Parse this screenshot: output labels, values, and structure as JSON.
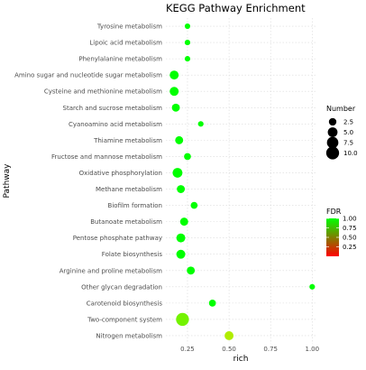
{
  "chart_data": {
    "type": "scatter",
    "title": "KEGG Pathway Enrichment",
    "xlabel": "rich",
    "ylabel": "Pathway",
    "xlim": [
      0.12,
      1.02
    ],
    "x_ticks": [
      0.25,
      0.5,
      0.75,
      1.0
    ],
    "x_tick_labels": [
      "0.25",
      "0.50",
      "0.75",
      "1.00"
    ],
    "grid": true,
    "categories": [
      "Tyrosine metabolism",
      "Lipoic acid metabolism",
      "Phenylalanine metabolism",
      "Amino sugar and nucleotide sugar metabolism",
      "Cysteine and methionine metabolism",
      "Starch and sucrose metabolism",
      "Cyanoamino acid metabolism",
      "Thiamine metabolism",
      "Fructose and mannose metabolism",
      "Oxidative phosphorylation",
      "Methane metabolism",
      "Biofilm formation",
      "Butanoate metabolism",
      "Pentose phosphate pathway",
      "Folate biosynthesis",
      "Arginine and proline metabolism",
      "Other glycan degradation",
      "Carotenoid biosynthesis",
      "Two-component system",
      "Nitrogen metabolism"
    ],
    "points": [
      {
        "pathway": "Tyrosine metabolism",
        "rich": 0.25,
        "number": 1,
        "fdr": 1.0
      },
      {
        "pathway": "Lipoic acid metabolism",
        "rich": 0.25,
        "number": 1,
        "fdr": 1.0
      },
      {
        "pathway": "Phenylalanine metabolism",
        "rich": 0.25,
        "number": 1,
        "fdr": 1.0
      },
      {
        "pathway": "Amino sugar and nucleotide sugar metabolism",
        "rich": 0.17,
        "number": 4,
        "fdr": 1.0
      },
      {
        "pathway": "Cysteine and methionine metabolism",
        "rich": 0.17,
        "number": 4,
        "fdr": 1.0
      },
      {
        "pathway": "Starch and sucrose metabolism",
        "rich": 0.18,
        "number": 3,
        "fdr": 1.0
      },
      {
        "pathway": "Cyanoamino acid metabolism",
        "rich": 0.33,
        "number": 1,
        "fdr": 1.0
      },
      {
        "pathway": "Thiamine metabolism",
        "rich": 0.2,
        "number": 3,
        "fdr": 1.0
      },
      {
        "pathway": "Fructose and mannose metabolism",
        "rich": 0.25,
        "number": 2,
        "fdr": 1.0
      },
      {
        "pathway": "Oxidative phosphorylation",
        "rich": 0.19,
        "number": 5,
        "fdr": 1.0
      },
      {
        "pathway": "Methane metabolism",
        "rich": 0.21,
        "number": 3,
        "fdr": 1.0
      },
      {
        "pathway": "Biofilm formation",
        "rich": 0.29,
        "number": 2,
        "fdr": 1.0
      },
      {
        "pathway": "Butanoate metabolism",
        "rich": 0.23,
        "number": 3,
        "fdr": 1.0
      },
      {
        "pathway": "Pentose phosphate pathway",
        "rich": 0.21,
        "number": 4,
        "fdr": 1.0
      },
      {
        "pathway": "Folate biosynthesis",
        "rich": 0.21,
        "number": 4,
        "fdr": 1.0
      },
      {
        "pathway": "Arginine and proline metabolism",
        "rich": 0.27,
        "number": 3,
        "fdr": 1.0
      },
      {
        "pathway": "Other glycan degradation",
        "rich": 1.0,
        "number": 1,
        "fdr": 1.0
      },
      {
        "pathway": "Carotenoid biosynthesis",
        "rich": 0.4,
        "number": 2,
        "fdr": 1.0
      },
      {
        "pathway": "Two-component system",
        "rich": 0.22,
        "number": 10,
        "fdr": 0.75
      },
      {
        "pathway": "Nitrogen metabolism",
        "rich": 0.5,
        "number": 4,
        "fdr": 0.62
      }
    ],
    "legend_size": {
      "title": "Number",
      "values": [
        2.5,
        5.0,
        7.5,
        10.0
      ],
      "labels": [
        "2.5",
        "5.0",
        "7.5",
        "10.0"
      ]
    },
    "legend_color": {
      "title": "FDR",
      "range": [
        0,
        1
      ],
      "ticks": [
        0.25,
        0.5,
        0.75,
        1.0
      ],
      "tick_labels": [
        "0.25",
        "0.50",
        "0.75",
        "1.00"
      ],
      "low_color": "#ff0000",
      "high_color": "#00ff00"
    }
  }
}
